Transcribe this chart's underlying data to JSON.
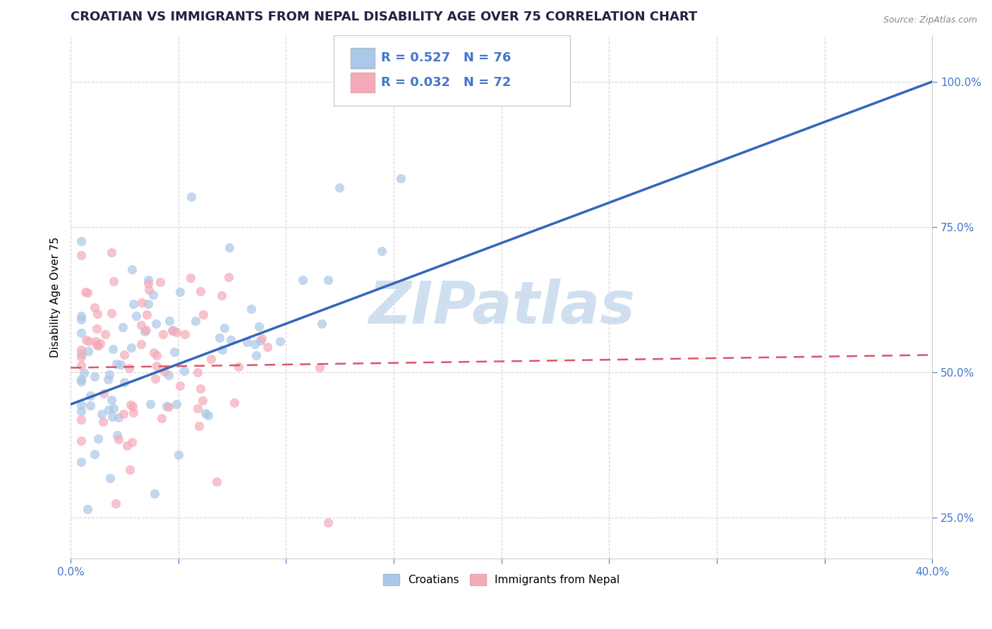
{
  "title": "CROATIAN VS IMMIGRANTS FROM NEPAL DISABILITY AGE OVER 75 CORRELATION CHART",
  "source": "Source: ZipAtlas.com",
  "ylabel": "Disability Age Over 75",
  "xlim": [
    0.0,
    0.4
  ],
  "ylim": [
    0.18,
    1.08
  ],
  "xtick_positions": [
    0.0,
    0.05,
    0.1,
    0.15,
    0.2,
    0.25,
    0.3,
    0.35,
    0.4
  ],
  "xticklabels": [
    "0.0%",
    "",
    "",
    "",
    "",
    "",
    "",
    "",
    "40.0%"
  ],
  "ytick_positions": [
    0.25,
    0.5,
    0.75,
    1.0
  ],
  "yticklabels": [
    "25.0%",
    "50.0%",
    "75.0%",
    "100.0%"
  ],
  "blue_R": 0.527,
  "blue_N": 76,
  "pink_R": 0.032,
  "pink_N": 72,
  "blue_color": "#aac8e8",
  "pink_color": "#f5aab8",
  "blue_line_color": "#3366bb",
  "pink_line_color": "#dd5566",
  "tick_color": "#4477cc",
  "background_color": "#ffffff",
  "watermark_text": "ZIPatlas",
  "watermark_color": "#d0dff0",
  "title_fontsize": 13,
  "axis_label_fontsize": 11,
  "tick_fontsize": 11,
  "legend_fontsize": 13,
  "blue_trend_x0": 0.0,
  "blue_trend_y0": 0.445,
  "blue_trend_x1": 0.4,
  "blue_trend_y1": 1.0,
  "pink_trend_x0": 0.0,
  "pink_trend_y0": 0.508,
  "pink_trend_x1": 0.4,
  "pink_trend_y1": 0.53
}
